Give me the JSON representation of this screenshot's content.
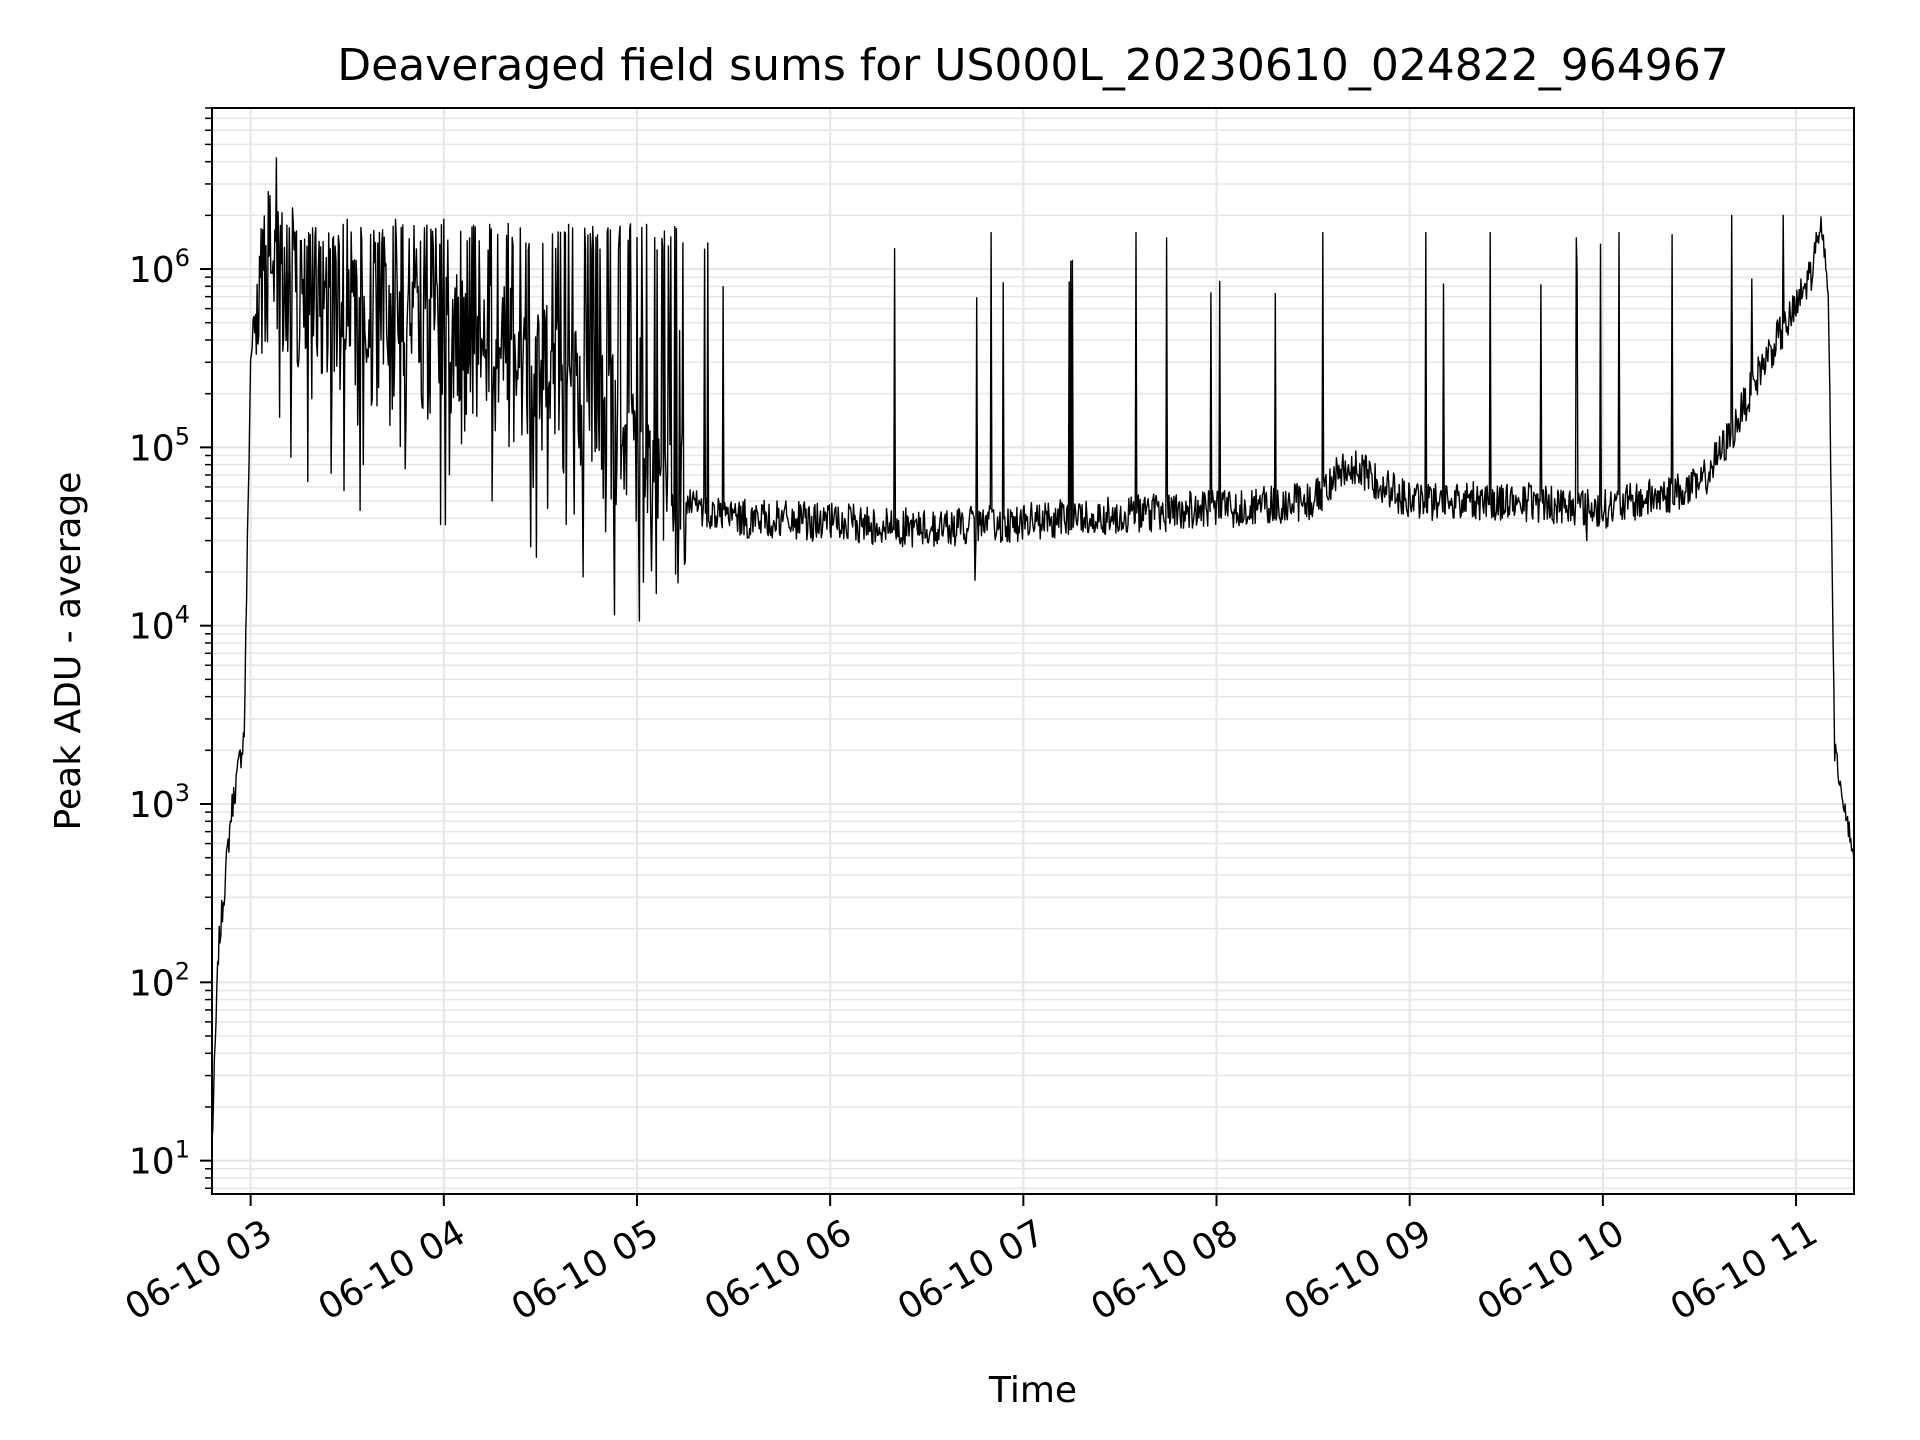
{
  "chart_data": {
    "type": "line",
    "title": "Deaveraged field sums for US000L_20230610_024822_964967",
    "xlabel": "Time",
    "ylabel": "Peak ADU - average",
    "yscale": "log",
    "grid": true,
    "line_color": "#000000",
    "grid_color": "#e6e6e6",
    "x_ticks": [
      "06-10 03",
      "06-10 04",
      "06-10 05",
      "06-10 06",
      "06-10 07",
      "06-10 08",
      "06-10 09",
      "06-10 10",
      "06-10 11"
    ],
    "y_ticks": [
      {
        "base": "10",
        "exp": "1"
      },
      {
        "base": "10",
        "exp": "2"
      },
      {
        "base": "10",
        "exp": "3"
      },
      {
        "base": "10",
        "exp": "4"
      },
      {
        "base": "10",
        "exp": "5"
      },
      {
        "base": "10",
        "exp": "6"
      }
    ],
    "xlim": [
      "2023-06-10 02:48",
      "2023-06-10 11:18"
    ],
    "ylim": [
      6.5,
      8000000
    ],
    "baseline": [
      {
        "x": "2023-06-10 02:48",
        "y": 12
      },
      {
        "x": "2023-06-10 02:50",
        "y": 150
      },
      {
        "x": "2023-06-10 02:54",
        "y": 900
      },
      {
        "x": "2023-06-10 02:58",
        "y": 2500
      },
      {
        "x": "2023-06-10 03:00",
        "y": 300000
      },
      {
        "x": "2023-06-10 03:02",
        "y": 900000
      },
      {
        "x": "2023-06-10 03:05",
        "y": 1000000
      },
      {
        "x": "2023-06-10 03:15",
        "y": 700000
      },
      {
        "x": "2023-06-10 03:30",
        "y": 500000
      },
      {
        "x": "2023-06-10 04:00",
        "y": 350000
      },
      {
        "x": "2023-06-10 04:30",
        "y": 250000
      },
      {
        "x": "2023-06-10 05:00",
        "y": 100000
      },
      {
        "x": "2023-06-10 05:10",
        "y": 50000
      },
      {
        "x": "2023-06-10 05:30",
        "y": 40000
      },
      {
        "x": "2023-06-10 06:00",
        "y": 38000
      },
      {
        "x": "2023-06-10 06:30",
        "y": 35000
      },
      {
        "x": "2023-06-10 07:00",
        "y": 38000
      },
      {
        "x": "2023-06-10 07:30",
        "y": 42000
      },
      {
        "x": "2023-06-10 08:00",
        "y": 45000
      },
      {
        "x": "2023-06-10 08:30",
        "y": 50000
      },
      {
        "x": "2023-06-10 08:40",
        "y": 80000
      },
      {
        "x": "2023-06-10 08:50",
        "y": 65000
      },
      {
        "x": "2023-06-10 09:00",
        "y": 50000
      },
      {
        "x": "2023-06-10 09:30",
        "y": 50000
      },
      {
        "x": "2023-06-10 09:45",
        "y": 48000
      },
      {
        "x": "2023-06-10 10:00",
        "y": 45000
      },
      {
        "x": "2023-06-10 10:30",
        "y": 60000
      },
      {
        "x": "2023-06-10 10:40",
        "y": 120000
      },
      {
        "x": "2023-06-10 10:50",
        "y": 300000
      },
      {
        "x": "2023-06-10 11:00",
        "y": 600000
      },
      {
        "x": "2023-06-10 11:05",
        "y": 1000000
      },
      {
        "x": "2023-06-10 11:08",
        "y": 1700000
      },
      {
        "x": "2023-06-10 11:10",
        "y": 800000
      },
      {
        "x": "2023-06-10 11:12",
        "y": 2000
      },
      {
        "x": "2023-06-10 11:15",
        "y": 1000
      },
      {
        "x": "2023-06-10 11:18",
        "y": 500
      }
    ],
    "spikes": [
      {
        "x": "2023-06-10 03:08",
        "y": 4200000
      },
      {
        "x": "2023-06-10 03:13",
        "y": 2200000
      },
      {
        "x": "2023-06-10 03:30",
        "y": 1900000
      },
      {
        "x": "2023-06-10 03:45",
        "y": 1900000
      },
      {
        "x": "2023-06-10 04:00",
        "y": 1900000
      },
      {
        "x": "2023-06-10 04:20",
        "y": 1800000
      },
      {
        "x": "2023-06-10 04:40",
        "y": 1700000
      },
      {
        "x": "2023-06-10 05:00",
        "y": 1500000
      },
      {
        "x": "2023-06-10 05:22",
        "y": 1400000
      },
      {
        "x": "2023-06-10 06:20",
        "y": 1300000
      },
      {
        "x": "2023-06-10 06:50",
        "y": 1600000
      },
      {
        "x": "2023-06-10 07:35",
        "y": 1600000
      },
      {
        "x": "2023-06-10 08:33",
        "y": 1600000
      },
      {
        "x": "2023-06-10 09:05",
        "y": 1600000
      },
      {
        "x": "2023-06-10 09:25",
        "y": 1600000
      },
      {
        "x": "2023-06-10 10:05",
        "y": 1600000
      },
      {
        "x": "2023-06-10 10:40",
        "y": 2000000
      },
      {
        "x": "2023-06-10 10:56",
        "y": 2000000
      }
    ],
    "dips": [
      {
        "x": "2023-06-10 03:35",
        "y": 80000
      },
      {
        "x": "2023-06-10 04:15",
        "y": 50000
      },
      {
        "x": "2023-06-10 04:38",
        "y": 37000
      },
      {
        "x": "2023-06-10 05:15",
        "y": 23000
      },
      {
        "x": "2023-06-10 06:45",
        "y": 18000
      },
      {
        "x": "2023-06-10 09:55",
        "y": 30000
      }
    ]
  }
}
